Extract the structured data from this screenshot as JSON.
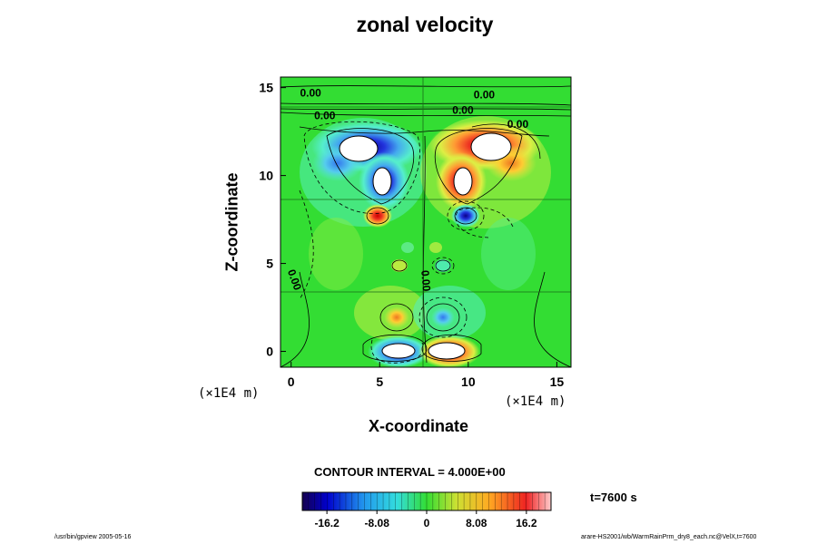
{
  "chart_data": {
    "type": "heatmap",
    "title": "zonal velocity",
    "xlabel": "X-coordinate",
    "ylabel": "Z-coordinate",
    "x_unit": "(×1E4 m)",
    "xlim": [
      -0.6,
      15.8
    ],
    "ylim": [
      -0.9,
      15.6
    ],
    "x_ticks": [
      "0",
      "5",
      "10",
      "15"
    ],
    "y_ticks": [
      "0",
      "5",
      "10",
      "15"
    ],
    "x_tick_values": [
      0,
      5,
      10,
      15
    ],
    "y_tick_values": [
      0,
      5,
      10,
      15
    ],
    "contour_labels": [
      {
        "text": "0.00",
        "x": 1.1,
        "z": 14.5
      },
      {
        "text": "0.00",
        "x": 10.9,
        "z": 14.4
      },
      {
        "text": "0.00",
        "x": 1.9,
        "z": 13.2
      },
      {
        "text": "0.00",
        "x": 9.7,
        "z": 13.5
      },
      {
        "text": "0.00",
        "x": 12.8,
        "z": 12.7
      },
      {
        "text": "0.00",
        "x": 0.0,
        "z": 4.0
      },
      {
        "text": "0.00",
        "x": 7.4,
        "z": 4.0
      }
    ],
    "features": [
      {
        "kind": "negative",
        "x": 3.6,
        "z": 11.6,
        "amplitude": -20
      },
      {
        "kind": "negative",
        "x": 5.5,
        "z": 11.6,
        "amplitude": -10
      },
      {
        "kind": "negative",
        "x": 5.6,
        "z": 9.8,
        "amplitude": -18
      },
      {
        "kind": "positive",
        "x": 4.8,
        "z": 7.7,
        "amplitude": 14
      },
      {
        "kind": "positive",
        "x": 10.9,
        "z": 11.4,
        "amplitude": 20
      },
      {
        "kind": "positive",
        "x": 9.2,
        "z": 11.8,
        "amplitude": 11
      },
      {
        "kind": "positive",
        "x": 9.6,
        "z": 9.8,
        "amplitude": 18
      },
      {
        "kind": "negative",
        "x": 9.9,
        "z": 7.7,
        "amplitude": -14
      },
      {
        "kind": "positive",
        "x": 6.0,
        "z": 2.1,
        "amplitude": 12
      },
      {
        "kind": "negative",
        "x": 8.8,
        "z": 1.9,
        "amplitude": -8
      },
      {
        "kind": "negative",
        "x": 6.0,
        "z": 0.0,
        "amplitude": -22
      },
      {
        "kind": "positive",
        "x": 8.8,
        "z": 0.0,
        "amplitude": 22
      }
    ],
    "colorbar": {
      "min": -20.2,
      "max": 20.2,
      "tick_labels": [
        "-16.2",
        "-8.08",
        "0",
        "8.08",
        "16.2"
      ],
      "tick_values": [
        -16.2,
        -8.08,
        0,
        8.08,
        16.2
      ]
    },
    "contour_interval_text": "CONTOUR INTERVAL = 4.000E+00",
    "time_text": "t=7600 s"
  },
  "footer": {
    "left": "/usr/bin/gpview 2005-05-16",
    "right": "arare-HS2001/wb/WarmRainPrm_dry8_each.nc@VelX,t=7600"
  },
  "colors": {
    "background_field": "#33dd33",
    "strong_positive": "#dd0000",
    "strong_negative": "#000099"
  }
}
